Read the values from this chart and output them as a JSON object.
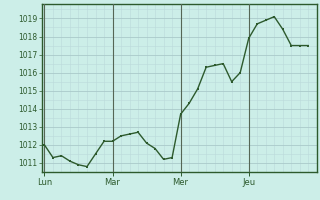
{
  "background_color": "#cceee8",
  "line_color": "#2d5a2d",
  "marker_color": "#2d5a2d",
  "grid_color_major": "#aacaca",
  "grid_color_minor": "#bbdada",
  "axis_label_color": "#2d5a2d",
  "tick_label_color": "#2d5a2d",
  "spine_color": "#2d5a2d",
  "ylim": [
    1010.5,
    1019.8
  ],
  "yticks": [
    1011,
    1012,
    1013,
    1014,
    1015,
    1016,
    1017,
    1018,
    1019
  ],
  "day_labels": [
    "Lun",
    "Mar",
    "Mer",
    "Jeu"
  ],
  "day_positions": [
    0,
    24,
    48,
    72
  ],
  "vline_color": "#556655",
  "data_x": [
    0,
    3,
    6,
    9,
    12,
    15,
    18,
    21,
    24,
    27,
    30,
    33,
    36,
    39,
    42,
    45,
    48,
    51,
    54,
    57,
    60,
    63,
    66,
    69,
    72,
    75,
    78,
    81,
    84,
    87,
    90,
    93
  ],
  "data_y": [
    1012.0,
    1011.3,
    1011.4,
    1011.1,
    1010.9,
    1010.8,
    1011.5,
    1012.2,
    1012.2,
    1012.5,
    1012.6,
    1012.7,
    1012.1,
    1011.8,
    1011.2,
    1011.3,
    1013.7,
    1014.3,
    1015.1,
    1016.3,
    1016.4,
    1016.5,
    1015.5,
    1016.0,
    1017.9,
    1018.7,
    1018.9,
    1019.1,
    1018.4,
    1017.5,
    1017.5,
    1017.5
  ]
}
